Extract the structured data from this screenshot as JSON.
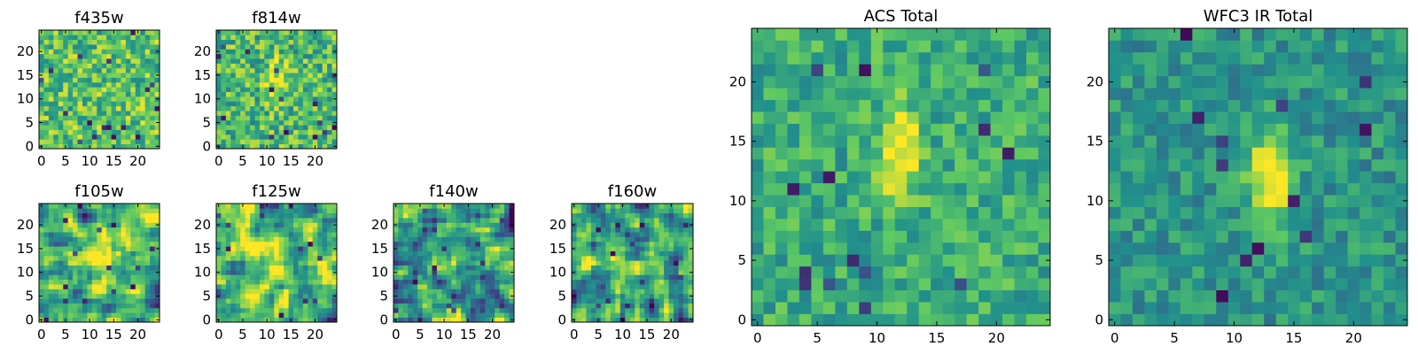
{
  "figure": {
    "background": "#ffffff",
    "colormap": [
      "#440154",
      "#3b528b",
      "#21918c",
      "#5ec962",
      "#fde725"
    ]
  },
  "chart_data": [
    {
      "type": "heatmap",
      "title": "f435w",
      "grid_size": 25,
      "xticks": [
        0,
        5,
        10,
        15,
        20
      ],
      "yticks": [
        0,
        5,
        10,
        15,
        20
      ],
      "xlim": [
        -0.5,
        24.5
      ],
      "ylim": [
        -0.5,
        24.5
      ],
      "seed": 11,
      "noise_mean": 0.72,
      "noise_amp": 0.5,
      "smooth": 0,
      "dark_count": 18,
      "blob": null
    },
    {
      "type": "heatmap",
      "title": "f814w",
      "grid_size": 25,
      "xticks": [
        0,
        5,
        10,
        15,
        20
      ],
      "yticks": [
        0,
        5,
        10,
        15,
        20
      ],
      "xlim": [
        -0.5,
        24.5
      ],
      "ylim": [
        -0.5,
        24.5
      ],
      "seed": 23,
      "noise_mean": 0.68,
      "noise_amp": 0.5,
      "smooth": 0,
      "dark_count": 16,
      "blob": {
        "x": 12,
        "y": 14,
        "sx": 1.5,
        "sy": 3,
        "amp": 0.3
      }
    },
    {
      "type": "heatmap",
      "title": "f105w",
      "grid_size": 25,
      "xticks": [
        0,
        5,
        10,
        15,
        20
      ],
      "yticks": [
        0,
        5,
        10,
        15,
        20
      ],
      "xlim": [
        -0.5,
        24.5
      ],
      "ylim": [
        -0.5,
        24.5
      ],
      "seed": 37,
      "noise_mean": 0.62,
      "noise_amp": 0.8,
      "smooth": 1,
      "dark_count": 14,
      "blob": {
        "x": 12,
        "y": 12,
        "sx": 2,
        "sy": 4,
        "amp": 0.35
      }
    },
    {
      "type": "heatmap",
      "title": "f125w",
      "grid_size": 25,
      "xticks": [
        0,
        5,
        10,
        15,
        20
      ],
      "yticks": [
        0,
        5,
        10,
        15,
        20
      ],
      "xlim": [
        -0.5,
        24.5
      ],
      "ylim": [
        -0.5,
        24.5
      ],
      "seed": 41,
      "noise_mean": 0.66,
      "noise_amp": 0.8,
      "smooth": 1,
      "dark_count": 12,
      "blob": {
        "x": 12,
        "y": 12,
        "sx": 2,
        "sy": 4,
        "amp": 0.3
      }
    },
    {
      "type": "heatmap",
      "title": "f140w",
      "grid_size": 25,
      "xticks": [
        0,
        5,
        10,
        15,
        20
      ],
      "yticks": [
        0,
        5,
        10,
        15,
        20
      ],
      "xlim": [
        -0.5,
        24.5
      ],
      "ylim": [
        -0.5,
        24.5
      ],
      "seed": 53,
      "noise_mean": 0.56,
      "noise_amp": 0.85,
      "smooth": 1,
      "dark_count": 14,
      "blob": null
    },
    {
      "type": "heatmap",
      "title": "f160w",
      "grid_size": 25,
      "xticks": [
        0,
        5,
        10,
        15,
        20
      ],
      "yticks": [
        0,
        5,
        10,
        15,
        20
      ],
      "xlim": [
        -0.5,
        24.5
      ],
      "ylim": [
        -0.5,
        24.5
      ],
      "seed": 67,
      "noise_mean": 0.58,
      "noise_amp": 0.85,
      "smooth": 1,
      "dark_count": 14,
      "blob": null
    },
    {
      "type": "heatmap",
      "title": "ACS Total",
      "grid_size": 25,
      "xticks": [
        0,
        5,
        10,
        15,
        20
      ],
      "yticks": [
        0,
        5,
        10,
        15,
        20
      ],
      "xlim": [
        -0.5,
        24.5
      ],
      "ylim": [
        -0.5,
        24.5
      ],
      "seed": 79,
      "noise_mean": 0.62,
      "noise_amp": 0.35,
      "smooth": 0,
      "dark_count": 14,
      "blob": {
        "x": 12,
        "y": 14,
        "sx": 1.2,
        "sy": 2.8,
        "amp": 0.45
      }
    },
    {
      "type": "heatmap",
      "title": "WFC3 IR Total",
      "grid_size": 25,
      "xticks": [
        0,
        5,
        10,
        15,
        20
      ],
      "yticks": [
        0,
        5,
        10,
        15,
        20
      ],
      "xlim": [
        -0.5,
        24.5
      ],
      "ylim": [
        -0.5,
        24.5
      ],
      "seed": 97,
      "noise_mean": 0.52,
      "noise_amp": 0.3,
      "smooth": 0,
      "dark_count": 12,
      "blob": {
        "x": 13,
        "y": 12,
        "sx": 1.3,
        "sy": 2.8,
        "amp": 0.55
      }
    }
  ]
}
